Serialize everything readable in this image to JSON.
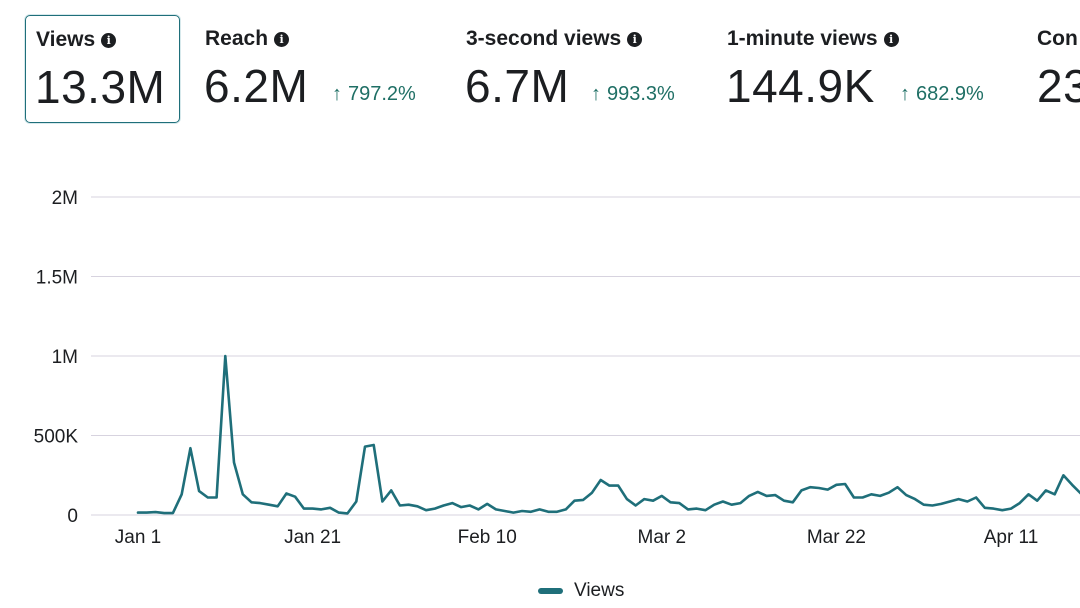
{
  "metrics": [
    {
      "label": "Views",
      "value": "13.3M",
      "change": "",
      "selected": true
    },
    {
      "label": "Reach",
      "value": "6.2M",
      "change": "797.2%",
      "selected": false
    },
    {
      "label": "3-second views",
      "value": "6.7M",
      "change": "993.3%",
      "selected": false
    },
    {
      "label": "1-minute views",
      "value": "144.9K",
      "change": "682.9%",
      "selected": false
    },
    {
      "label": "Con",
      "value": "23",
      "change": "",
      "selected": false
    }
  ],
  "icons": {
    "info": "info-icon",
    "change": "arrow-up-icon"
  },
  "colors": {
    "series": "#1f6f7a",
    "change": "#1f6f65",
    "grid": "#d7d3df"
  },
  "legend": {
    "label": "Views"
  },
  "chart_data": {
    "type": "line",
    "title": "",
    "xlabel": "",
    "ylabel": "",
    "ylim": [
      0,
      2000000
    ],
    "yticks": [
      0,
      500000,
      1000000,
      1500000,
      2000000
    ],
    "ytick_labels": [
      "0",
      "500K",
      "1M",
      "1.5M",
      "2M"
    ],
    "xticks": [
      0,
      20,
      40,
      60,
      80,
      100
    ],
    "xtick_labels": [
      "Jan 1",
      "Jan 21",
      "Feb 10",
      "Mar 2",
      "Mar 22",
      "Apr 11"
    ],
    "legend": [
      "Views"
    ],
    "series": [
      {
        "name": "Views",
        "x": [
          0,
          1,
          2,
          3,
          4,
          5,
          6,
          7,
          8,
          9,
          10,
          11,
          12,
          13,
          14,
          15,
          16,
          17,
          18,
          19,
          20,
          21,
          22,
          23,
          24,
          25,
          26,
          27,
          28,
          29,
          30,
          31,
          32,
          33,
          34,
          35,
          36,
          37,
          38,
          39,
          40,
          41,
          42,
          43,
          44,
          45,
          46,
          47,
          48,
          49,
          50,
          51,
          52,
          53,
          54,
          55,
          56,
          57,
          58,
          59,
          60,
          61,
          62,
          63,
          64,
          65,
          66,
          67,
          68,
          69,
          70,
          71,
          72,
          73,
          74,
          75,
          76,
          77,
          78,
          79,
          80,
          81,
          82,
          83,
          84,
          85,
          86,
          87,
          88,
          89,
          90,
          91,
          92,
          93,
          94,
          95,
          96,
          97,
          98,
          99,
          100,
          101,
          102,
          103,
          104,
          105,
          106,
          107,
          108
        ],
        "values": [
          15000,
          15000,
          18000,
          12000,
          12000,
          130000,
          420000,
          150000,
          110000,
          110000,
          1000000,
          330000,
          130000,
          80000,
          75000,
          65000,
          55000,
          135000,
          115000,
          40000,
          40000,
          35000,
          45000,
          15000,
          10000,
          85000,
          430000,
          440000,
          85000,
          155000,
          60000,
          65000,
          55000,
          30000,
          40000,
          60000,
          75000,
          50000,
          60000,
          35000,
          70000,
          35000,
          25000,
          15000,
          25000,
          20000,
          35000,
          20000,
          20000,
          35000,
          90000,
          95000,
          140000,
          220000,
          185000,
          185000,
          100000,
          60000,
          100000,
          90000,
          120000,
          80000,
          75000,
          35000,
          40000,
          30000,
          65000,
          85000,
          65000,
          75000,
          120000,
          145000,
          120000,
          125000,
          90000,
          80000,
          155000,
          175000,
          170000,
          160000,
          190000,
          195000,
          110000,
          110000,
          130000,
          120000,
          140000,
          175000,
          125000,
          100000,
          65000,
          60000,
          70000,
          85000,
          100000,
          85000,
          110000,
          45000,
          40000,
          30000,
          40000,
          75000,
          130000,
          90000,
          155000,
          130000,
          250000,
          190000,
          135000
        ]
      }
    ]
  }
}
